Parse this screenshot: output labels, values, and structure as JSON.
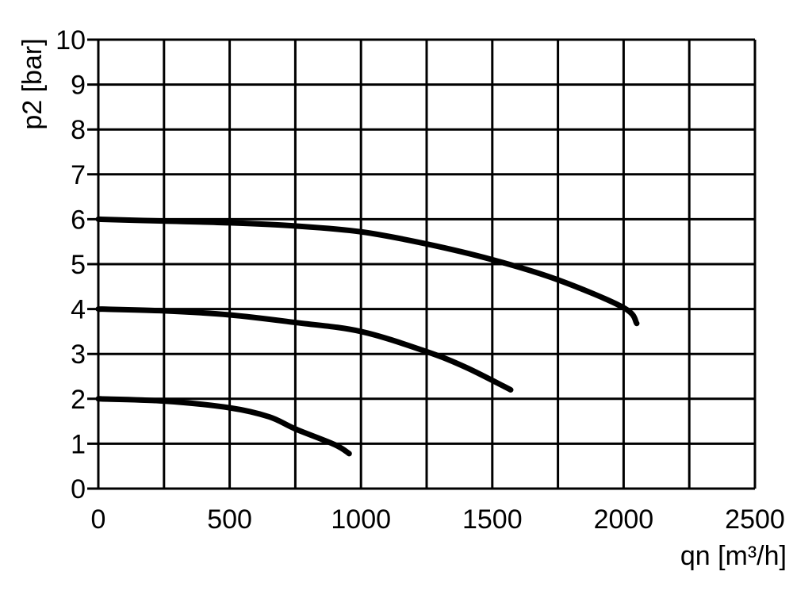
{
  "chart_data": {
    "type": "line",
    "title": "",
    "xlabel": "qn [m³/h]",
    "ylabel": "p2 [bar]",
    "xlim": [
      0,
      2500
    ],
    "ylim": [
      0,
      10
    ],
    "xticks": [
      "0",
      "500",
      "1000",
      "1500",
      "2000",
      "2500"
    ],
    "yticks": [
      "0",
      "1",
      "2",
      "3",
      "4",
      "5",
      "6",
      "7",
      "8",
      "9",
      "10"
    ],
    "grid": true,
    "grid_step": {
      "x": 250,
      "y": 1
    },
    "line_color": "#000000",
    "series": [
      {
        "x": [
          0,
          250,
          500,
          750,
          1000,
          1250,
          1500,
          1750,
          2000,
          2050
        ],
        "y": [
          6.0,
          5.96,
          5.92,
          5.85,
          5.72,
          5.45,
          5.1,
          4.65,
          4.03,
          3.68
        ]
      },
      {
        "x": [
          0,
          250,
          500,
          750,
          1000,
          1250,
          1400,
          1570
        ],
        "y": [
          4.0,
          3.96,
          3.87,
          3.7,
          3.5,
          3.05,
          2.7,
          2.2
        ]
      },
      {
        "x": [
          0,
          250,
          500,
          650,
          750,
          900,
          955
        ],
        "y": [
          2.0,
          1.95,
          1.8,
          1.6,
          1.33,
          0.98,
          0.78
        ]
      }
    ]
  }
}
